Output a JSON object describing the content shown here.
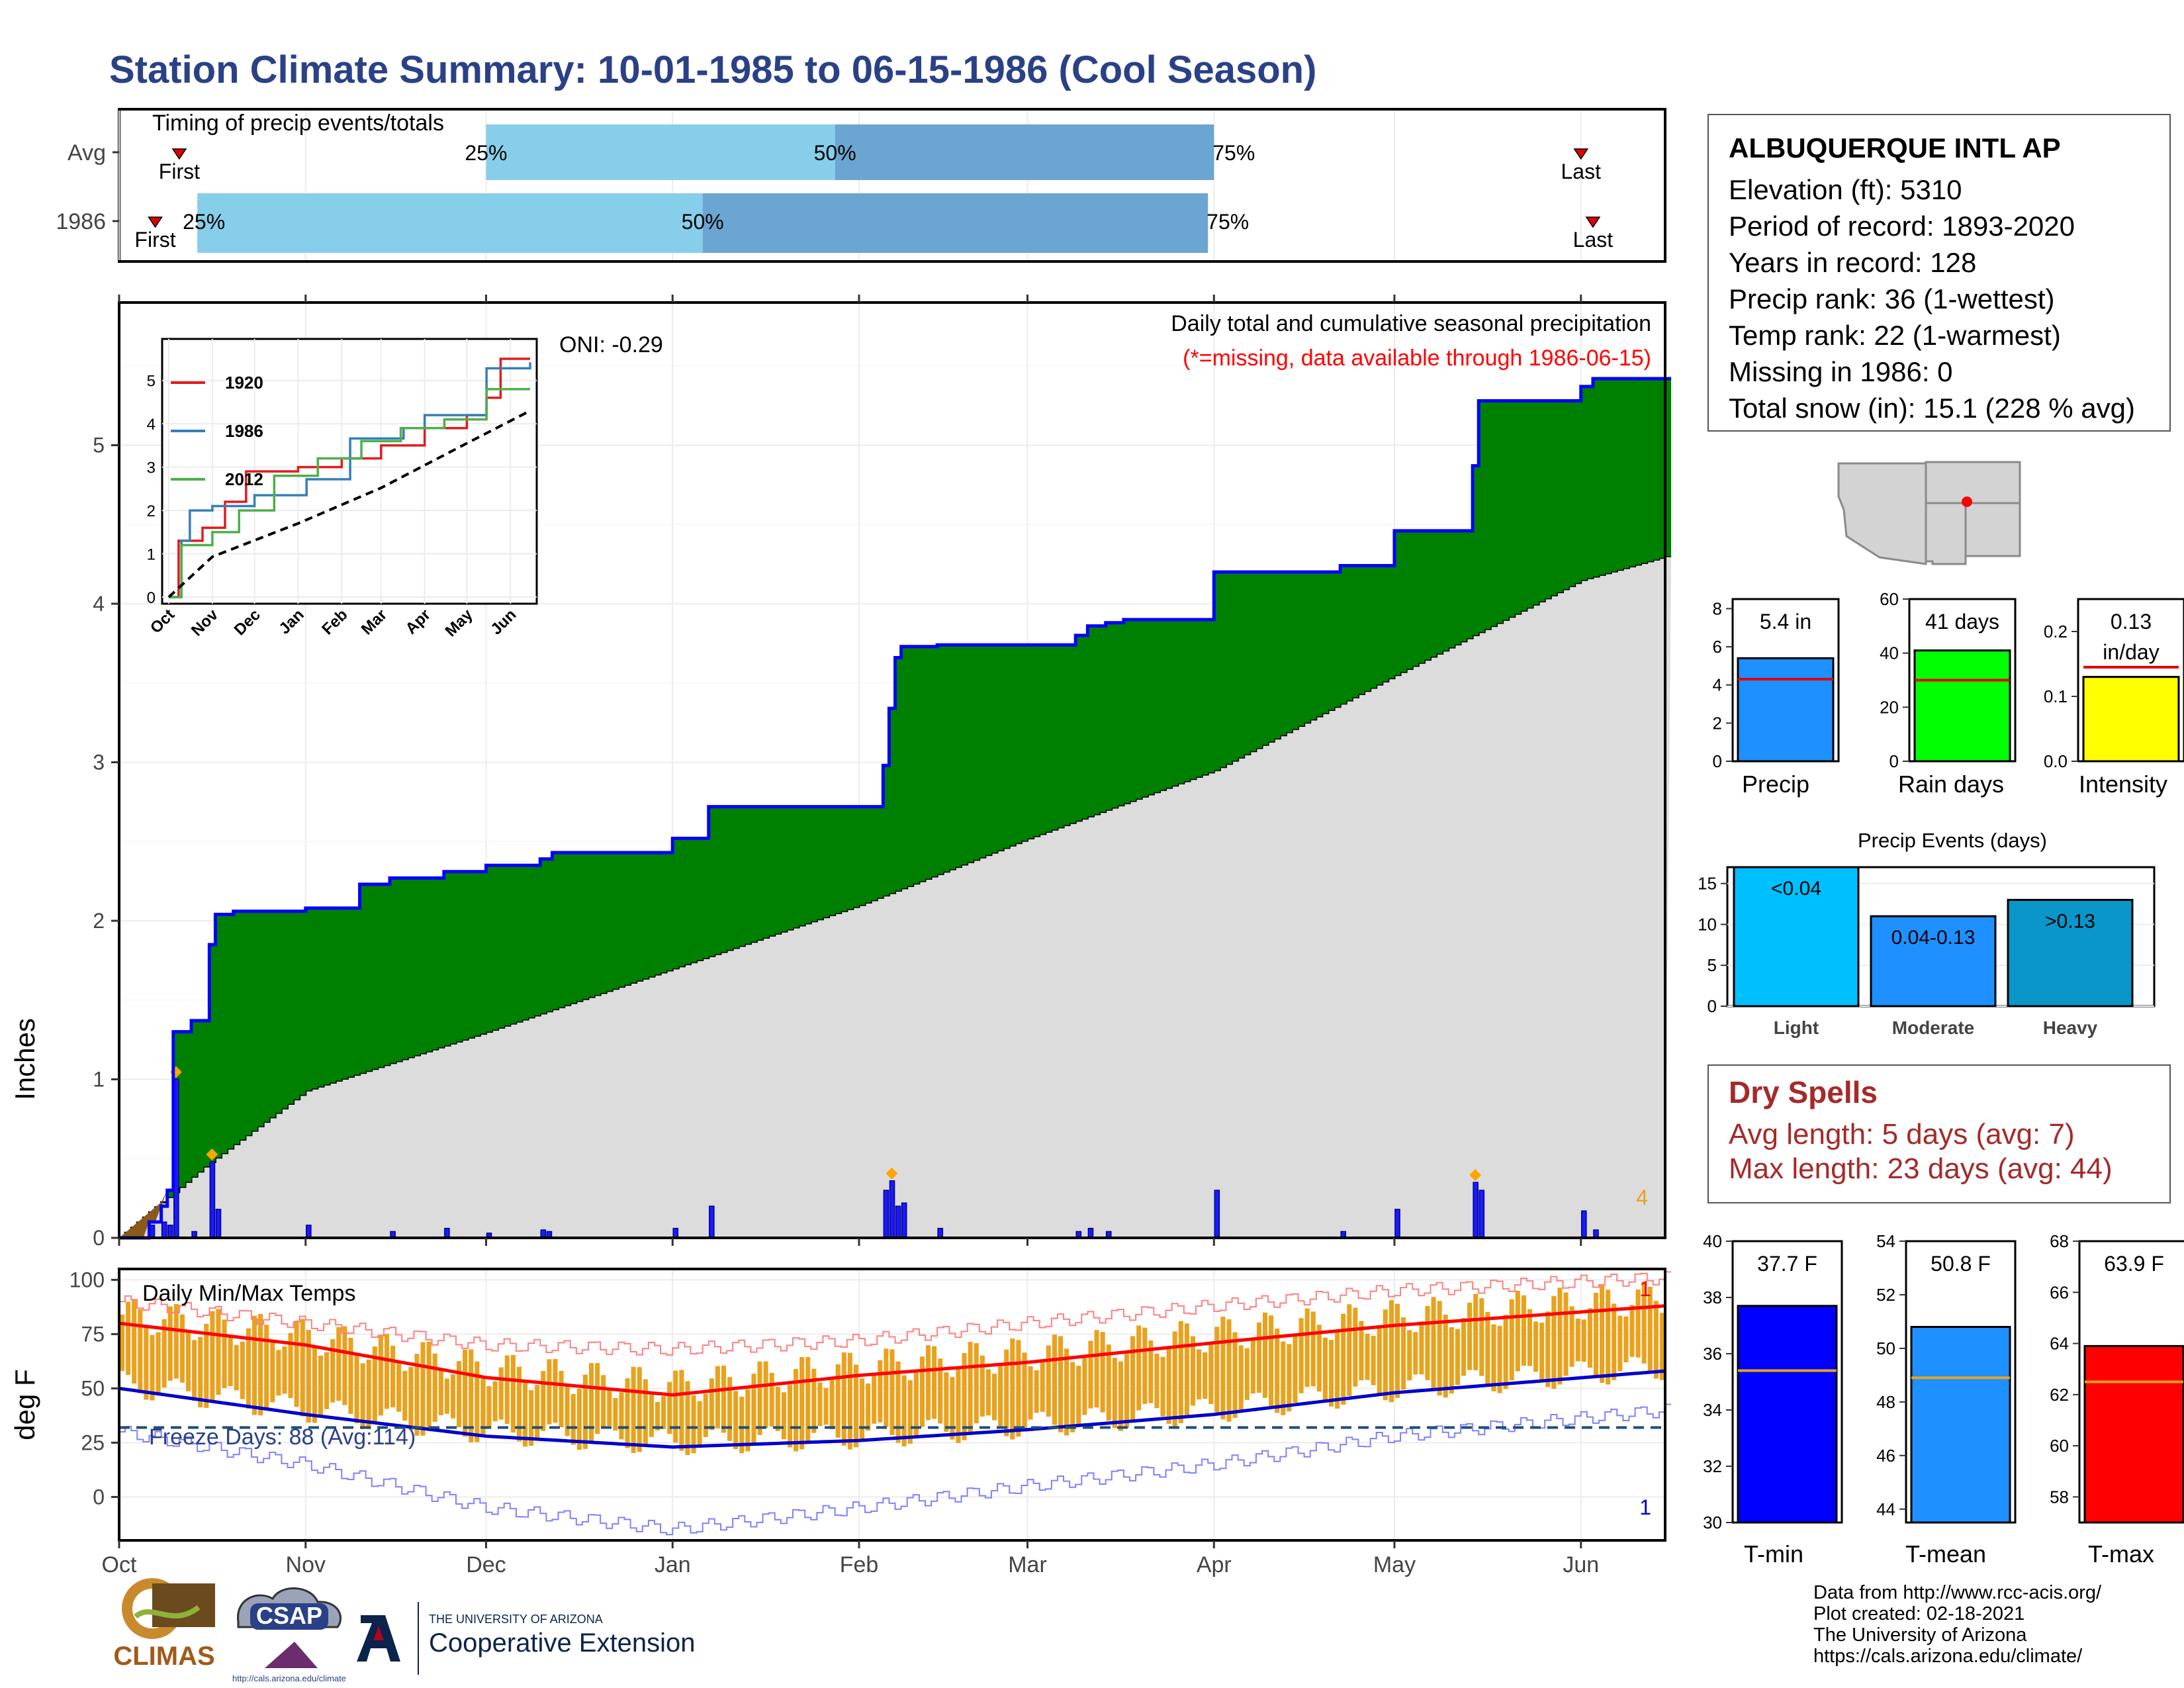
{
  "title": "Station Climate Summary: 10-01-1985 to 06-15-1986 (Cool Season)",
  "timing": {
    "title": "Timing of precip events/totals",
    "rows": [
      {
        "label": "Avg",
        "first_label": "First",
        "last_label": "Last",
        "p25": "25%",
        "p50": "50%",
        "p75": "75%"
      },
      {
        "label": "1986",
        "first_label": "First",
        "last_label": "Last",
        "p25": "25%",
        "p50": "50%",
        "p75": "75%"
      }
    ]
  },
  "main": {
    "ylabel": "Inches",
    "oni": "ONI: -0.29",
    "caption": "Daily total and cumulative seasonal precipitation",
    "missing_note": "(*=missing, data available through 1986-06-15)",
    "corner_count": "4"
  },
  "inset": {
    "legend": [
      "1920",
      "1986",
      "2012"
    ]
  },
  "temps": {
    "label": "Daily Min/Max Temps",
    "ylabel": "deg F",
    "freeze": "Freeze Days: 88 (Avg:114)",
    "top_count": "1",
    "bottom_count": "1"
  },
  "months": [
    "Oct",
    "Nov",
    "Dec",
    "Jan",
    "Feb",
    "Mar",
    "Apr",
    "May",
    "Jun"
  ],
  "station": {
    "name": "ALBUQUERQUE INTL AP",
    "lines": [
      "Elevation (ft): 5310",
      "Period of record: 1893-2020",
      "Years in record: 128",
      "Precip rank: 36 (1-wettest)",
      "Temp rank: 22 (1-warmest)",
      "Missing in 1986: 0",
      "Total snow (in): 15.1 (228 % avg)"
    ]
  },
  "summary_bars": {
    "precip": {
      "label": "Precip",
      "value_text": "5.4 in"
    },
    "rain_days": {
      "label": "Rain days",
      "value_text": "41 days"
    },
    "intensity": {
      "label": "Intensity",
      "value_text": "0.13 in/day"
    }
  },
  "precip_events": {
    "title": "Precip Events (days)",
    "bars": [
      {
        "label": "Light",
        "tag": "<0.04"
      },
      {
        "label": "Moderate",
        "tag": "0.04-0.13"
      },
      {
        "label": "Heavy",
        "tag": ">0.13"
      }
    ]
  },
  "dry_spells": {
    "title": "Dry Spells",
    "avg": "Avg length: 5 days (avg: 7)",
    "max": "Max length: 23 days (avg: 44)"
  },
  "temp_bars": [
    {
      "label": "T-min",
      "value_text": "37.7 F"
    },
    {
      "label": "T-mean",
      "value_text": "50.8 F"
    },
    {
      "label": "T-max",
      "value_text": "63.9 F"
    }
  ],
  "credits": [
    "Data from http://www.rcc-acis.org/",
    "Plot created: 02-18-2021",
    "The University of Arizona",
    "https://cals.arizona.edu/climate/"
  ],
  "logos": {
    "climas": "CLIMAS",
    "csap": "CSAP",
    "csap_url": "http://cals.arizona.edu/climate",
    "ua_top": "THE UNIVERSITY OF ARIZONA",
    "ua_bottom": "Cooperative Extension"
  },
  "colors": {
    "title": "#2a4187",
    "seasonal_fill": "#008000",
    "normal_fill": "#dcdcdc",
    "cumulative_line": "#0000ff",
    "tmax_line": "#ff0000",
    "tmin_line": "#0000cd",
    "temp_bars": "#e8a21e"
  },
  "chart_data": [
    {
      "type": "bar",
      "name": "timing",
      "categories": [
        "Avg",
        "1986"
      ],
      "x_axis": "date",
      "series": [
        {
          "name": "First",
          "values": [
            "1985-10-11",
            "1985-10-07"
          ]
        },
        {
          "name": "25%",
          "values": [
            "1985-12-01",
            "1985-10-14"
          ]
        },
        {
          "name": "50%",
          "values": [
            "1986-01-28",
            "1986-01-06"
          ]
        },
        {
          "name": "75%",
          "values": [
            "1986-04-01",
            "1986-03-31"
          ]
        },
        {
          "name": "Last",
          "values": [
            "1986-06-01",
            "1986-06-03"
          ]
        }
      ]
    },
    {
      "type": "area",
      "name": "cumulative_precip",
      "x_axis": "date",
      "ylabel": "Inches",
      "ylim": [
        0,
        5.9
      ],
      "cumulative_1986": [
        [
          "1985-10-01",
          0
        ],
        [
          "1985-10-06",
          0.1
        ],
        [
          "1985-10-08",
          0.2
        ],
        [
          "1985-10-09",
          0.3
        ],
        [
          "1985-10-10",
          1.3
        ],
        [
          "1985-10-13",
          1.37
        ],
        [
          "1985-10-16",
          1.85
        ],
        [
          "1985-10-17",
          2.04
        ],
        [
          "1985-10-20",
          2.06
        ],
        [
          "1985-11-01",
          2.08
        ],
        [
          "1985-11-10",
          2.23
        ],
        [
          "1985-11-15",
          2.27
        ],
        [
          "1985-11-24",
          2.31
        ],
        [
          "1985-12-01",
          2.35
        ],
        [
          "1985-12-10",
          2.39
        ],
        [
          "1985-12-12",
          2.43
        ],
        [
          "1986-01-01",
          2.52
        ],
        [
          "1986-01-07",
          2.72
        ],
        [
          "1986-02-05",
          2.98
        ],
        [
          "1986-02-06",
          3.34
        ],
        [
          "1986-02-07",
          3.66
        ],
        [
          "1986-02-08",
          3.73
        ],
        [
          "1986-02-14",
          3.74
        ],
        [
          "1986-03-09",
          3.8
        ],
        [
          "1986-03-11",
          3.86
        ],
        [
          "1986-03-14",
          3.88
        ],
        [
          "1986-03-17",
          3.9
        ],
        [
          "1986-04-01",
          4.2
        ],
        [
          "1986-04-22",
          4.24
        ],
        [
          "1986-05-01",
          4.46
        ],
        [
          "1986-05-14",
          4.87
        ],
        [
          "1986-05-15",
          5.28
        ],
        [
          "1986-06-01",
          5.37
        ],
        [
          "1986-06-03",
          5.42
        ],
        [
          "1986-06-15",
          5.42
        ]
      ],
      "normal_cumulative": [
        [
          "1985-10-01",
          0
        ],
        [
          "1985-10-15",
          0.45
        ],
        [
          "1985-11-01",
          0.93
        ],
        [
          "1985-12-01",
          1.3
        ],
        [
          "1986-01-01",
          1.7
        ],
        [
          "1986-02-01",
          2.1
        ],
        [
          "1986-03-01",
          2.52
        ],
        [
          "1986-04-01",
          2.95
        ],
        [
          "1986-05-01",
          3.55
        ],
        [
          "1986-06-01",
          4.15
        ],
        [
          "1986-06-15",
          4.3
        ]
      ],
      "daily_precip": [
        [
          "1985-10-06",
          0.08
        ],
        [
          "1985-10-08",
          0.1
        ],
        [
          "1985-10-09",
          0.08
        ],
        [
          "1985-10-10",
          1.0
        ],
        [
          "1985-10-13",
          0.04
        ],
        [
          "1985-10-16",
          0.48
        ],
        [
          "1985-10-17",
          0.18
        ],
        [
          "1985-11-01",
          0.08
        ],
        [
          "1985-11-15",
          0.04
        ],
        [
          "1985-11-24",
          0.06
        ],
        [
          "1985-12-01",
          0.03
        ],
        [
          "1985-12-10",
          0.05
        ],
        [
          "1985-12-11",
          0.04
        ],
        [
          "1986-01-01",
          0.06
        ],
        [
          "1986-01-07",
          0.2
        ],
        [
          "1986-02-05",
          0.3
        ],
        [
          "1986-02-06",
          0.36
        ],
        [
          "1986-02-07",
          0.2
        ],
        [
          "1986-02-08",
          0.22
        ],
        [
          "1986-02-14",
          0.06
        ],
        [
          "1986-03-09",
          0.04
        ],
        [
          "1986-03-11",
          0.06
        ],
        [
          "1986-03-14",
          0.04
        ],
        [
          "1986-04-01",
          0.3
        ],
        [
          "1986-04-22",
          0.04
        ],
        [
          "1986-05-01",
          0.18
        ],
        [
          "1986-05-14",
          0.35
        ],
        [
          "1986-05-15",
          0.3
        ],
        [
          "1986-06-01",
          0.17
        ],
        [
          "1986-06-03",
          0.05
        ]
      ]
    },
    {
      "type": "line",
      "name": "cumulative_inset",
      "x_axis": "date",
      "ylim": [
        0,
        5.5
      ],
      "series": [
        {
          "name": "1920",
          "values": [
            [
              "1985-10-01",
              0
            ],
            [
              "1985-10-08",
              1.3
            ],
            [
              "1985-10-25",
              1.6
            ],
            [
              "1985-11-10",
              2.2
            ],
            [
              "1985-11-25",
              2.9
            ],
            [
              "1986-01-01",
              3.0
            ],
            [
              "1986-02-01",
              3.2
            ],
            [
              "1986-03-01",
              3.5
            ],
            [
              "1986-04-01",
              3.9
            ],
            [
              "1986-05-01",
              4.2
            ],
            [
              "1986-05-15",
              4.6
            ],
            [
              "1986-05-25",
              5.5
            ],
            [
              "1986-06-15",
              5.5
            ]
          ]
        },
        {
          "name": "1986",
          "values": [
            [
              "1985-10-01",
              0
            ],
            [
              "1985-10-10",
              1.3
            ],
            [
              "1985-10-16",
              2.0
            ],
            [
              "1985-11-01",
              2.1
            ],
            [
              "1985-12-01",
              2.35
            ],
            [
              "1986-01-07",
              2.72
            ],
            [
              "1986-02-07",
              3.66
            ],
            [
              "1986-03-17",
              3.9
            ],
            [
              "1986-04-01",
              4.2
            ],
            [
              "1986-05-15",
              5.28
            ],
            [
              "1986-06-15",
              5.42
            ]
          ]
        },
        {
          "name": "2012",
          "values": [
            [
              "1985-10-01",
              0
            ],
            [
              "1985-10-10",
              1.2
            ],
            [
              "1985-11-01",
              1.5
            ],
            [
              "1985-11-20",
              2.0
            ],
            [
              "1985-12-15",
              2.8
            ],
            [
              "1986-01-15",
              3.2
            ],
            [
              "1986-02-15",
              3.6
            ],
            [
              "1986-03-15",
              3.9
            ],
            [
              "1986-04-15",
              4.1
            ],
            [
              "1986-05-15",
              4.8
            ],
            [
              "1986-06-15",
              4.8
            ]
          ]
        },
        {
          "name": "Avg",
          "values": [
            [
              "1985-10-01",
              0
            ],
            [
              "1985-11-01",
              0.93
            ],
            [
              "1986-01-01",
              1.7
            ],
            [
              "1986-03-01",
              2.52
            ],
            [
              "1986-05-01",
              3.55
            ],
            [
              "1986-06-15",
              4.3
            ]
          ]
        }
      ]
    },
    {
      "type": "line",
      "name": "daily_temps",
      "x_axis": "date",
      "ylabel": "deg F",
      "ylim": [
        -20,
        105
      ],
      "freeze_line": 32,
      "series": [
        {
          "name": "avg_tmax",
          "values": [
            [
              "1985-10-01",
              80
            ],
            [
              "1985-11-01",
              70
            ],
            [
              "1985-12-01",
              55
            ],
            [
              "1986-01-01",
              47
            ],
            [
              "1986-02-01",
              56
            ],
            [
              "1986-03-01",
              62
            ],
            [
              "1986-04-01",
              71
            ],
            [
              "1986-05-01",
              79
            ],
            [
              "1986-06-15",
              88
            ]
          ]
        },
        {
          "name": "avg_tmin",
          "values": [
            [
              "1985-10-01",
              50
            ],
            [
              "1985-11-01",
              38
            ],
            [
              "1985-12-01",
              28
            ],
            [
              "1986-01-01",
              23
            ],
            [
              "1986-02-01",
              26
            ],
            [
              "1986-03-01",
              31
            ],
            [
              "1986-04-01",
              38
            ],
            [
              "1986-05-01",
              48
            ],
            [
              "1986-06-15",
              58
            ]
          ]
        },
        {
          "name": "record_high",
          "values": [
            [
              "1985-10-01",
              90
            ],
            [
              "1985-11-01",
              80
            ],
            [
              "1985-12-01",
              70
            ],
            [
              "1986-01-01",
              68
            ],
            [
              "1986-02-01",
              72
            ],
            [
              "1986-03-01",
              80
            ],
            [
              "1986-04-01",
              88
            ],
            [
              "1986-05-01",
              95
            ],
            [
              "1986-06-15",
              101
            ]
          ]
        },
        {
          "name": "record_low",
          "values": [
            [
              "1985-10-01",
              30
            ],
            [
              "1985-11-01",
              15
            ],
            [
              "1985-12-01",
              -5
            ],
            [
              "1986-01-01",
              -15
            ],
            [
              "1986-02-01",
              -5
            ],
            [
              "1986-03-01",
              5
            ],
            [
              "1986-04-01",
              15
            ],
            [
              "1986-05-01",
              28
            ],
            [
              "1986-06-15",
              40
            ]
          ]
        }
      ]
    },
    {
      "type": "bar",
      "name": "precip_total",
      "categories": [
        "Precip"
      ],
      "values": [
        5.4
      ],
      "avg": 4.3,
      "ylim": [
        0,
        8.5
      ]
    },
    {
      "type": "bar",
      "name": "rain_days",
      "categories": [
        "Rain days"
      ],
      "values": [
        41
      ],
      "avg": 30,
      "ylim": [
        0,
        60
      ]
    },
    {
      "type": "bar",
      "name": "intensity",
      "categories": [
        "Intensity"
      ],
      "values": [
        0.13
      ],
      "avg": 0.145,
      "ylim": [
        0,
        0.25
      ]
    },
    {
      "type": "bar",
      "name": "precip_events",
      "title": "Precip Events (days)",
      "categories": [
        "Light",
        "Moderate",
        "Heavy"
      ],
      "values": [
        17,
        11,
        13
      ],
      "ylim": [
        0,
        17
      ]
    },
    {
      "type": "bar",
      "name": "tmin",
      "categories": [
        "T-min"
      ],
      "values": [
        37.7
      ],
      "avg": 35.4,
      "ylim": [
        30,
        40
      ]
    },
    {
      "type": "bar",
      "name": "tmean",
      "categories": [
        "T-mean"
      ],
      "values": [
        50.8
      ],
      "avg": 48.9,
      "ylim": [
        43.5,
        54
      ]
    },
    {
      "type": "bar",
      "name": "tmax",
      "categories": [
        "T-max"
      ],
      "values": [
        63.9
      ],
      "avg": 62.5,
      "ylim": [
        57,
        68
      ]
    }
  ]
}
